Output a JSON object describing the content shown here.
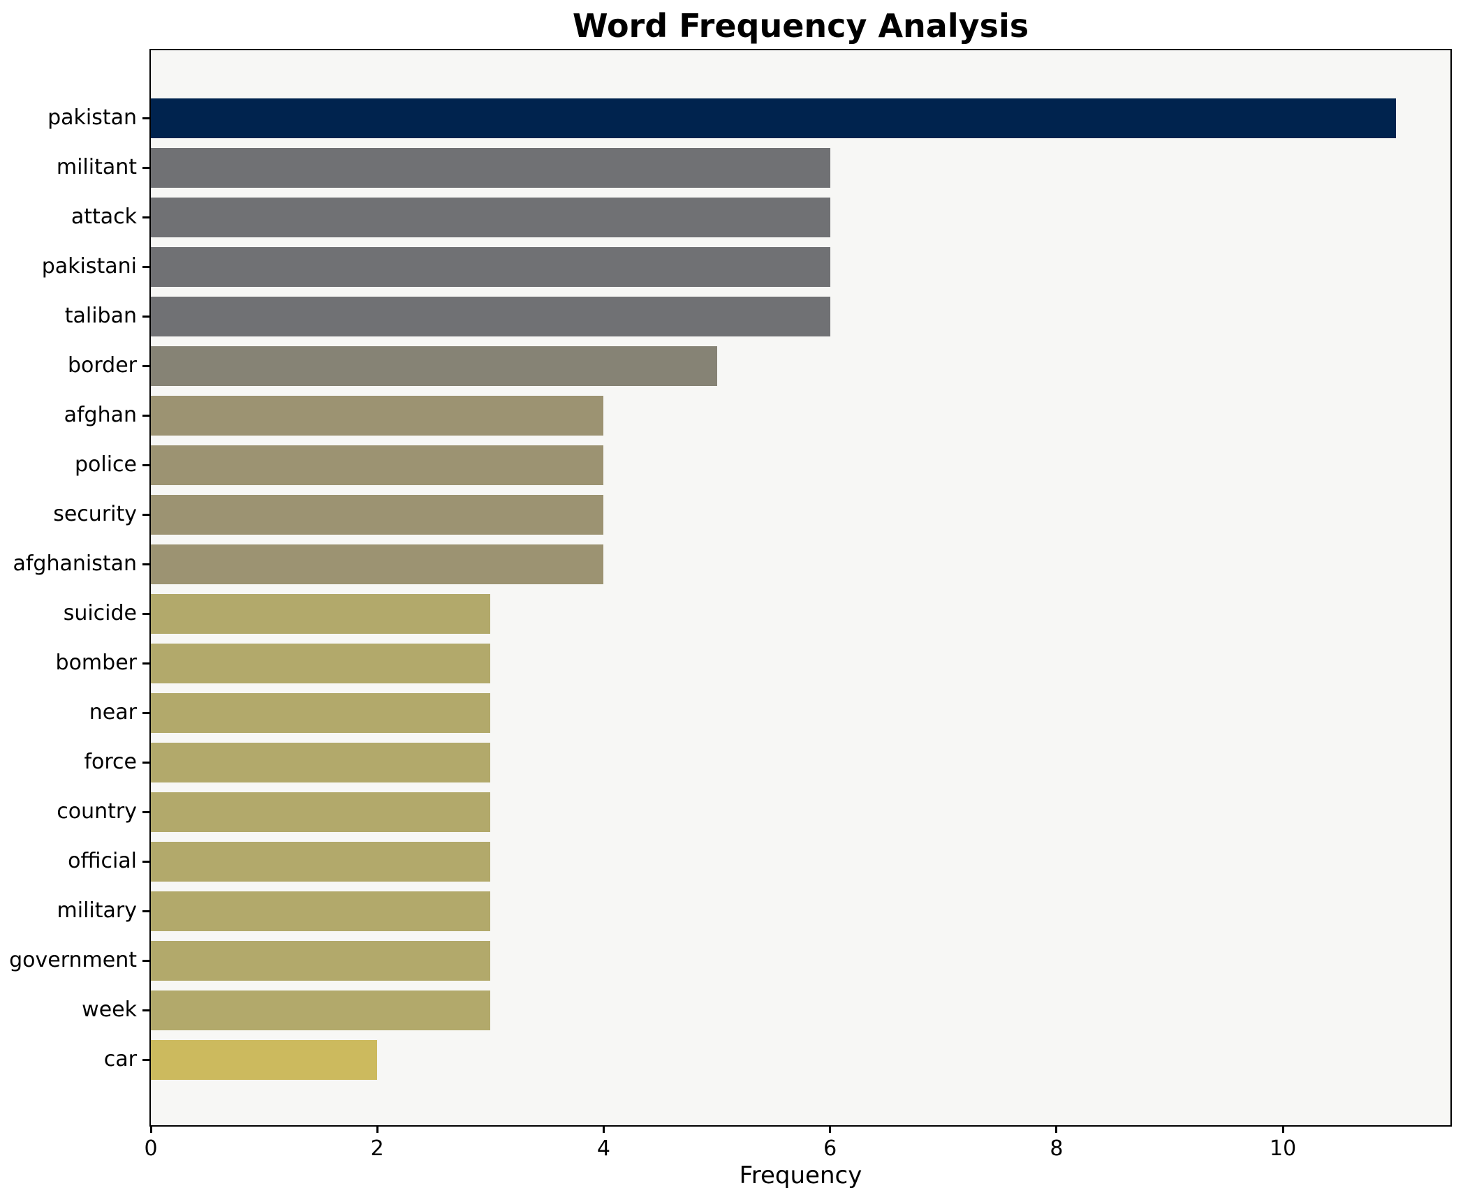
{
  "chart_data": {
    "type": "bar",
    "orientation": "horizontal",
    "title": "Word Frequency Analysis",
    "xlabel": "Frequency",
    "ylabel": "",
    "categories": [
      "pakistan",
      "militant",
      "attack",
      "pakistani",
      "taliban",
      "border",
      "afghan",
      "police",
      "security",
      "afghanistan",
      "suicide",
      "bomber",
      "near",
      "force",
      "country",
      "official",
      "military",
      "government",
      "week",
      "car"
    ],
    "values": [
      11,
      6,
      6,
      6,
      6,
      5,
      4,
      4,
      4,
      4,
      3,
      3,
      3,
      3,
      3,
      3,
      3,
      3,
      3,
      2
    ],
    "bar_colors": [
      "#00234e",
      "#707174",
      "#707174",
      "#707174",
      "#707174",
      "#868375",
      "#9c9372",
      "#9c9372",
      "#9c9372",
      "#9c9372",
      "#b2a96b",
      "#b2a96b",
      "#b2a96b",
      "#b2a96b",
      "#b2a96b",
      "#b2a96b",
      "#b2a96b",
      "#b2a96b",
      "#b2a96b",
      "#ccba5e"
    ],
    "xticks": [
      0,
      2,
      4,
      6,
      8,
      10
    ],
    "xlim": [
      0,
      11.48
    ],
    "grid": false,
    "legend": null,
    "colors": {
      "figure_background": "#ffffff",
      "plot_background": "#f7f7f5",
      "spine": "#000000",
      "text": "#000000",
      "max_bar": "#00234e",
      "min_bar": "#ccba5e"
    }
  }
}
